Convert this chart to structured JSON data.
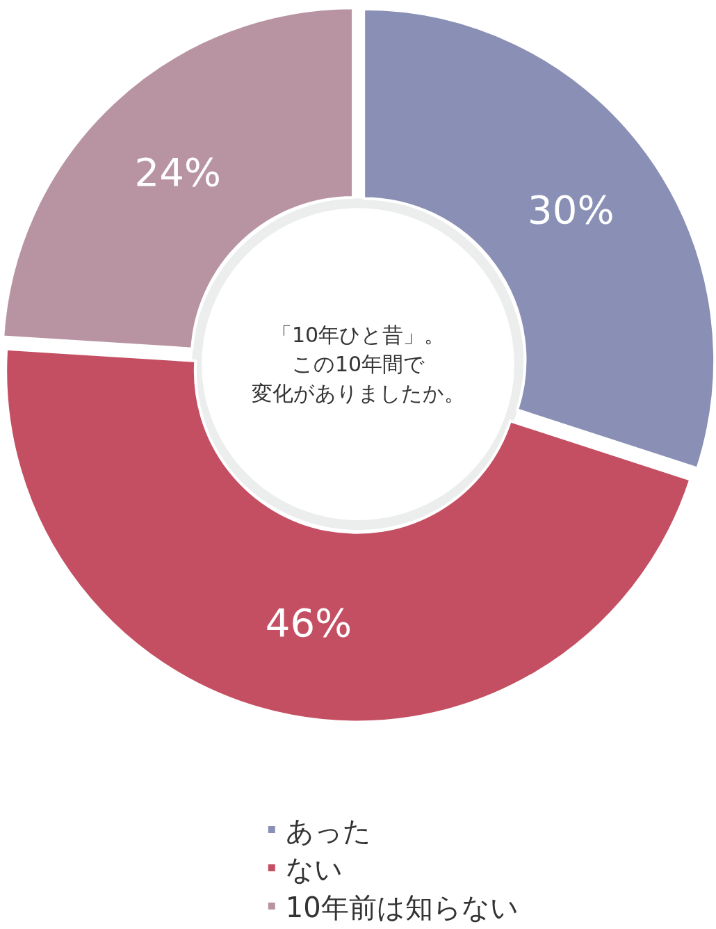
{
  "chart_data": {
    "type": "donut",
    "annotations": [
      "「10年ひと昔」。",
      "この10年間で",
      "変化がありましたか。"
    ],
    "categories": [
      "あった",
      "ない",
      "10年前は知らない"
    ],
    "values": [
      30,
      46,
      24
    ],
    "value_labels": [
      "30%",
      "46%",
      "24%"
    ],
    "colors": [
      "#8a90b5",
      "#c44f62",
      "#b894a3"
    ],
    "legend": "bottom"
  }
}
